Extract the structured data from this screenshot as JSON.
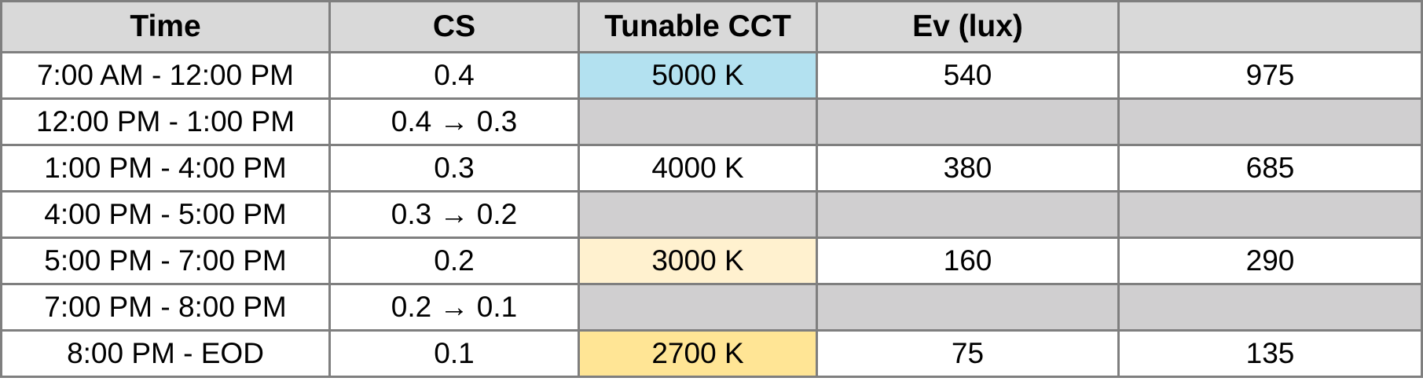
{
  "table": {
    "headers": [
      "Time",
      "CS",
      "Tunable CCT",
      "Ev (lux)",
      ""
    ],
    "rows": [
      {
        "time": "7:00 AM - 12:00 PM",
        "cs": "0.4",
        "cct": "5000 K",
        "ev": "540",
        "extra": "975"
      },
      {
        "time": "12:00 PM - 1:00 PM",
        "cs": "0.4 → 0.3",
        "cct": "",
        "ev": "",
        "extra": ""
      },
      {
        "time": "1:00 PM - 4:00 PM",
        "cs": "0.3",
        "cct": "4000 K",
        "ev": "380",
        "extra": "685"
      },
      {
        "time": "4:00 PM - 5:00 PM",
        "cs": "0.3 → 0.2",
        "cct": "",
        "ev": "",
        "extra": ""
      },
      {
        "time": "5:00 PM - 7:00 PM",
        "cs": "0.2",
        "cct": "3000 K",
        "ev": "160",
        "extra": "290"
      },
      {
        "time": "7:00 PM - 8:00 PM",
        "cs": "0.2 → 0.1",
        "cct": "",
        "ev": "",
        "extra": ""
      },
      {
        "time": "8:00 PM - EOD",
        "cs": "0.1",
        "cct": "2700 K",
        "ev": "75",
        "extra": "135"
      }
    ]
  },
  "colors": {
    "header_bg": "#d9d9d9",
    "transition_bg": "#d0cfd0",
    "border": "#7f7f7f",
    "cct_5000": "#b3e1f0",
    "cct_4000": "#ffffff",
    "cct_3000": "#fff1cf",
    "cct_2700": "#ffe595"
  }
}
